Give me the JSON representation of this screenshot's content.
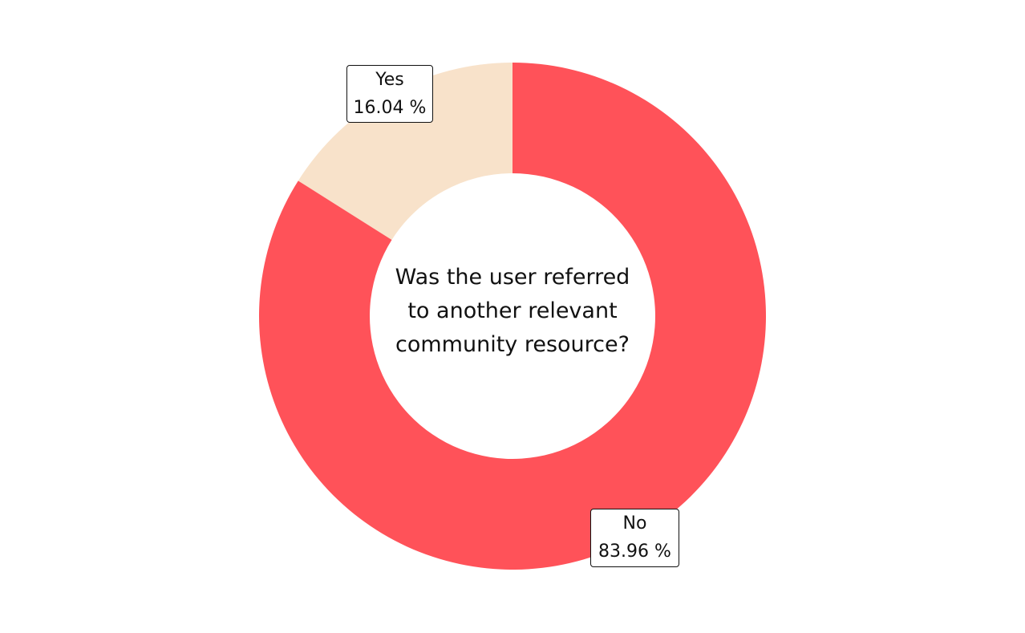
{
  "chart_data": {
    "type": "pie",
    "title": "Was the user referred to another relevant community resource?",
    "title_lines": [
      "Was the user referred",
      "to another relevant",
      "community resource?"
    ],
    "donut": true,
    "start": "top",
    "direction": "counterclockwise",
    "slices": [
      {
        "label": "Yes",
        "value": 16.04,
        "display": "16.04 %",
        "color": "#F8E2CA"
      },
      {
        "label": "No",
        "value": 83.96,
        "display": "83.96 %",
        "color": "#FF5259"
      }
    ]
  }
}
